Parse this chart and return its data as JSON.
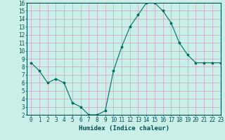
{
  "x": [
    0,
    1,
    2,
    3,
    4,
    5,
    6,
    7,
    8,
    9,
    10,
    11,
    12,
    13,
    14,
    15,
    16,
    17,
    18,
    19,
    20,
    21,
    22,
    23
  ],
  "y": [
    8.5,
    7.5,
    6.0,
    6.5,
    6.0,
    3.5,
    3.0,
    2.0,
    2.0,
    2.5,
    7.5,
    10.5,
    13.0,
    14.5,
    16.0,
    16.0,
    15.0,
    13.5,
    11.0,
    9.5,
    8.5,
    8.5,
    8.5,
    8.5
  ],
  "xlabel": "Humidex (Indice chaleur)",
  "ylim": [
    2,
    16
  ],
  "xlim": [
    -0.5,
    23
  ],
  "yticks": [
    2,
    3,
    4,
    5,
    6,
    7,
    8,
    9,
    10,
    11,
    12,
    13,
    14,
    15,
    16
  ],
  "xticks": [
    0,
    1,
    2,
    3,
    4,
    5,
    6,
    7,
    8,
    9,
    10,
    11,
    12,
    13,
    14,
    15,
    16,
    17,
    18,
    19,
    20,
    21,
    22,
    23
  ],
  "line_color": "#007060",
  "marker": "*",
  "bg_color": "#caeee8",
  "grid_major_color": "#d0a0c0",
  "grid_minor_color": "#d0a0c0",
  "font_color": "#005050",
  "tick_fontsize": 5.5,
  "xlabel_fontsize": 6.5
}
